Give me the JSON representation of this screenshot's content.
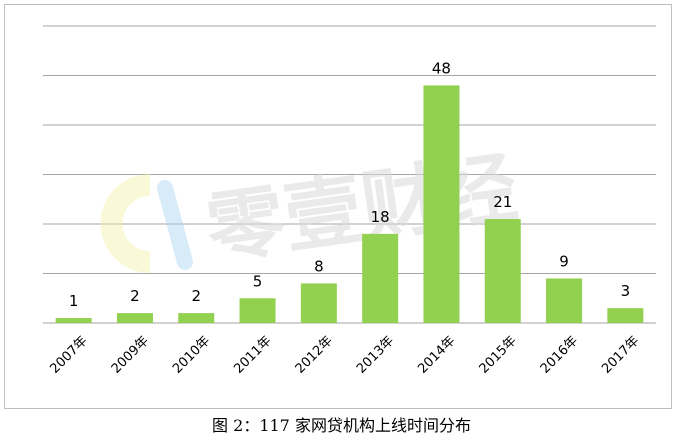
{
  "chart_data": {
    "type": "bar",
    "categories": [
      "2007年",
      "2009年",
      "2010年",
      "2011年",
      "2012年",
      "2013年",
      "2014年",
      "2015年",
      "2016年",
      "2017年"
    ],
    "values": [
      1,
      2,
      2,
      5,
      8,
      18,
      48,
      21,
      9,
      3
    ],
    "data_labels": [
      "1",
      "2",
      "2",
      "5",
      "8",
      "18",
      "48",
      "21",
      "9",
      "3"
    ],
    "title": "",
    "xlabel": "",
    "ylabel": "",
    "ylim": [
      0,
      60
    ],
    "grid": true,
    "legend": "none",
    "bar_color": "#92d050",
    "gridline_color": "#a6a6a6"
  },
  "watermark": {
    "text": "零壹财经",
    "logo_icon": "lingyi-logo-icon"
  },
  "caption": "图 2：117 家网贷机构上线时间分布"
}
